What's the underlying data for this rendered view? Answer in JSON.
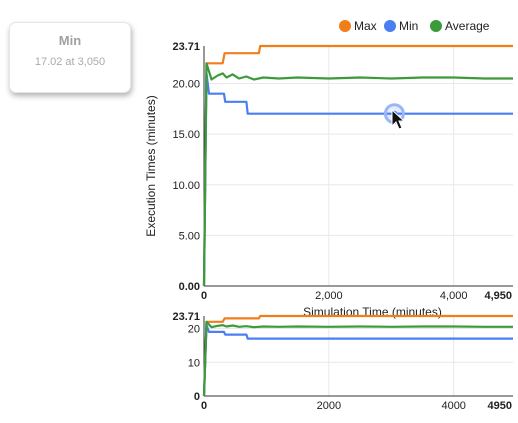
{
  "tooltip": {
    "title": "Min",
    "value": "17.02 at 3,050"
  },
  "legend": [
    {
      "label": "Max",
      "color": "#f07f1b",
      "icon": "legend-dot"
    },
    {
      "label": "Min",
      "color": "#4a7ef2",
      "icon": "legend-dot"
    },
    {
      "label": "Average",
      "color": "#3b9b3b",
      "icon": "legend-dot"
    }
  ],
  "chart_data": [
    {
      "type": "line",
      "xlabel": "Simulation Time (minutes)",
      "ylabel": "Execution Times (minutes)",
      "xlim": [
        0,
        4950
      ],
      "ylim": [
        0,
        23.71
      ],
      "x_ticks": [
        "0",
        "2,000",
        "4,000",
        "4,950"
      ],
      "y_ticks": [
        "0.00",
        "5.00",
        "10.00",
        "15.00",
        "20.00",
        "23.71"
      ],
      "grid": true,
      "legend_position": "top-right",
      "highlight": {
        "series": "Min",
        "x": 3050,
        "y": 17.02
      },
      "series": [
        {
          "name": "Max",
          "color": "#f07f1b",
          "points": [
            [
              0,
              0
            ],
            [
              40,
              22
            ],
            [
              300,
              22
            ],
            [
              330,
              23.0
            ],
            [
              880,
              23.0
            ],
            [
              900,
              23.71
            ],
            [
              4950,
              23.71
            ]
          ]
        },
        {
          "name": "Min",
          "color": "#4a7ef2",
          "points": [
            [
              0,
              0
            ],
            [
              40,
              21.0
            ],
            [
              80,
              19.0
            ],
            [
              320,
              19.0
            ],
            [
              340,
              18.2
            ],
            [
              680,
              18.2
            ],
            [
              700,
              17.02
            ],
            [
              4950,
              17.02
            ]
          ]
        },
        {
          "name": "Average",
          "color": "#3b9b3b",
          "points": [
            [
              0,
              0
            ],
            [
              40,
              22.0
            ],
            [
              120,
              20.4
            ],
            [
              220,
              20.8
            ],
            [
              300,
              21.0
            ],
            [
              360,
              20.6
            ],
            [
              460,
              20.9
            ],
            [
              560,
              20.5
            ],
            [
              680,
              20.7
            ],
            [
              800,
              20.4
            ],
            [
              950,
              20.6
            ],
            [
              1200,
              20.5
            ],
            [
              1500,
              20.6
            ],
            [
              2000,
              20.5
            ],
            [
              2500,
              20.6
            ],
            [
              3000,
              20.5
            ],
            [
              3500,
              20.6
            ],
            [
              4000,
              20.6
            ],
            [
              4500,
              20.5
            ],
            [
              4950,
              20.5
            ]
          ]
        }
      ]
    },
    {
      "type": "line",
      "xlim": [
        0,
        4950
      ],
      "ylim": [
        0,
        23.71
      ],
      "x_ticks": [
        "0",
        "2000",
        "4000",
        "4950"
      ],
      "y_ticks": [
        "0",
        "10",
        "20",
        "23.71"
      ],
      "grid": true,
      "series": [
        {
          "name": "Max",
          "color": "#f07f1b",
          "points": [
            [
              0,
              0
            ],
            [
              40,
              22
            ],
            [
              300,
              22
            ],
            [
              330,
              23.0
            ],
            [
              880,
              23.0
            ],
            [
              900,
              23.71
            ],
            [
              4950,
              23.71
            ]
          ]
        },
        {
          "name": "Min",
          "color": "#4a7ef2",
          "points": [
            [
              0,
              0
            ],
            [
              40,
              21.0
            ],
            [
              80,
              19.0
            ],
            [
              320,
              19.0
            ],
            [
              340,
              18.2
            ],
            [
              680,
              18.2
            ],
            [
              700,
              17.02
            ],
            [
              4950,
              17.02
            ]
          ]
        },
        {
          "name": "Average",
          "color": "#3b9b3b",
          "points": [
            [
              0,
              0
            ],
            [
              40,
              22.0
            ],
            [
              120,
              20.4
            ],
            [
              220,
              20.8
            ],
            [
              300,
              21.0
            ],
            [
              360,
              20.6
            ],
            [
              460,
              20.9
            ],
            [
              560,
              20.5
            ],
            [
              680,
              20.7
            ],
            [
              800,
              20.4
            ],
            [
              950,
              20.6
            ],
            [
              1200,
              20.5
            ],
            [
              1500,
              20.6
            ],
            [
              2000,
              20.5
            ],
            [
              2500,
              20.6
            ],
            [
              3000,
              20.5
            ],
            [
              3500,
              20.6
            ],
            [
              4000,
              20.6
            ],
            [
              4500,
              20.5
            ],
            [
              4950,
              20.5
            ]
          ]
        }
      ]
    }
  ]
}
